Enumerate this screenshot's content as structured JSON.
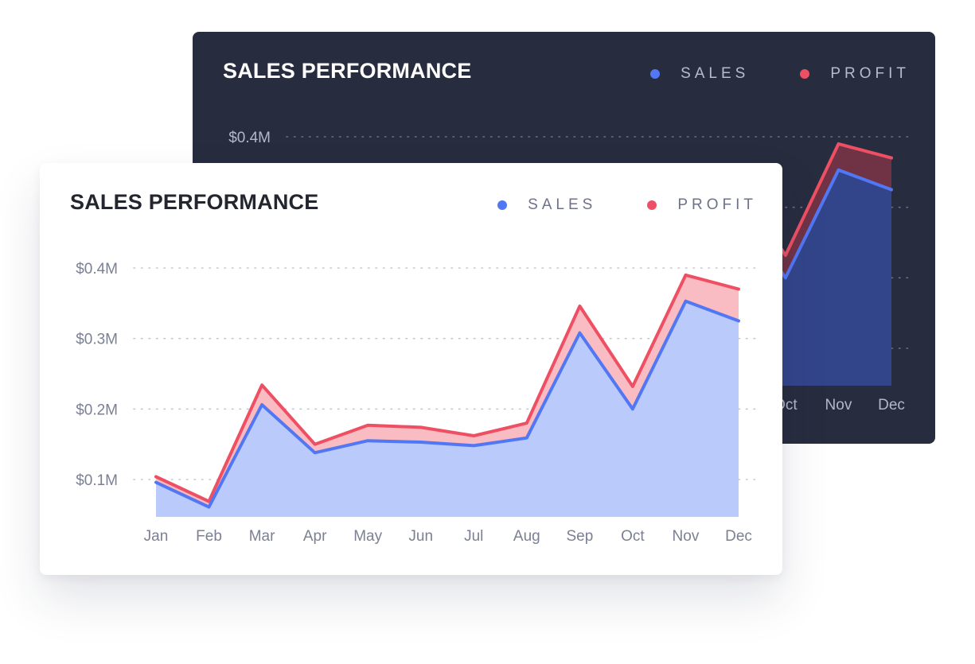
{
  "colors": {
    "sales": "#5277f5",
    "profit": "#ef4f63",
    "dark_card_bg": "#282c3f",
    "light_card_bg": "#ffffff",
    "light_sales_fill": "#b9cafb",
    "light_profit_fill": "#f9bcc3",
    "dark_sales_fill": "#33458a",
    "dark_profit_fill": "#703346"
  },
  "cards": [
    {
      "theme": "dark",
      "title": "SALES PERFORMANCE",
      "legend": [
        {
          "label": "SALES",
          "color": "#5277f5"
        },
        {
          "label": "PROFIT",
          "color": "#ef4f63"
        }
      ]
    },
    {
      "theme": "light",
      "title": "SALES PERFORMANCE",
      "legend": [
        {
          "label": "SALES",
          "color": "#5277f5"
        },
        {
          "label": "PROFIT",
          "color": "#ef4f63"
        }
      ]
    }
  ],
  "chart_data": [
    {
      "type": "area",
      "theme": "dark",
      "title": "SALES PERFORMANCE",
      "categories": [
        "Jan",
        "Feb",
        "Mar",
        "Apr",
        "May",
        "Jun",
        "Jul",
        "Aug",
        "Sep",
        "Oct",
        "Nov",
        "Dec"
      ],
      "visible_x_labels": [
        "Oct",
        "Nov",
        "Dec"
      ],
      "y_tick_labels": [
        "$0.4M"
      ],
      "ylim": [
        0.047,
        0.4
      ],
      "grid": true,
      "legend_position": "top-right",
      "series": [
        {
          "name": "SALES",
          "values": [
            0.096,
            0.061,
            0.206,
            0.138,
            0.155,
            0.153,
            0.148,
            0.159,
            0.308,
            0.2,
            0.353,
            0.325
          ]
        },
        {
          "name": "PROFIT",
          "values": [
            0.104,
            0.069,
            0.234,
            0.15,
            0.177,
            0.174,
            0.162,
            0.18,
            0.346,
            0.232,
            0.39,
            0.37
          ]
        }
      ]
    },
    {
      "type": "area",
      "theme": "light",
      "title": "SALES PERFORMANCE",
      "categories": [
        "Jan",
        "Feb",
        "Mar",
        "Apr",
        "May",
        "Jun",
        "Jul",
        "Aug",
        "Sep",
        "Oct",
        "Nov",
        "Dec"
      ],
      "y_tick_labels": [
        "$0.1M",
        "$0.2M",
        "$0.3M",
        "$0.4M"
      ],
      "ylim": [
        0.047,
        0.4
      ],
      "grid": true,
      "legend_position": "top-right",
      "series": [
        {
          "name": "SALES",
          "values": [
            0.096,
            0.061,
            0.206,
            0.138,
            0.155,
            0.153,
            0.148,
            0.159,
            0.308,
            0.2,
            0.353,
            0.325
          ]
        },
        {
          "name": "PROFIT",
          "values": [
            0.104,
            0.069,
            0.234,
            0.15,
            0.177,
            0.174,
            0.162,
            0.18,
            0.346,
            0.232,
            0.39,
            0.37
          ]
        }
      ]
    }
  ]
}
